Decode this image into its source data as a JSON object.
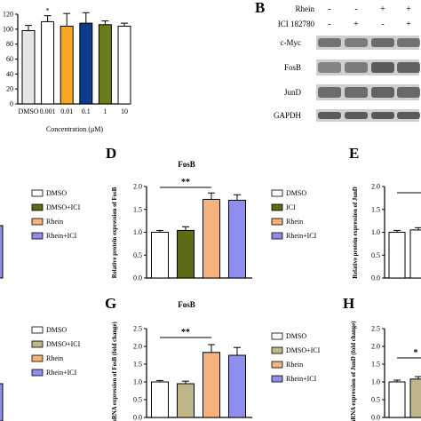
{
  "panels": {
    "top_left": {
      "chart_data": {
        "type": "bar",
        "categories": [
          "DMSO",
          "0.001",
          "0.01",
          "0.1",
          "1",
          "10"
        ],
        "values": [
          98,
          110,
          104,
          108,
          106,
          104
        ],
        "errors": [
          7,
          8,
          17,
          14,
          5,
          4
        ],
        "significance": [
          "",
          "*",
          "",
          "",
          "",
          ""
        ],
        "bar_colors": [
          "#e6e6e6",
          "#ffffff",
          "#f5a623",
          "#0d3b8c",
          "#6a7d1e",
          "#ffffff"
        ],
        "ylim": [
          0,
          120
        ],
        "yticks": [
          "0",
          "20",
          "40",
          "60",
          "80",
          "100",
          "120"
        ],
        "xlabel": "Concentration (μM)",
        "ylabel": ""
      }
    },
    "B": {
      "label": "B",
      "treatments": [
        {
          "name": "Rhein",
          "signs": [
            "-",
            "-",
            "+",
            "+"
          ]
        },
        {
          "name": "ICI 182780",
          "signs": [
            "-",
            "+",
            "-",
            "+"
          ]
        }
      ],
      "rows": [
        "c-Myc",
        "FosB",
        "JunD",
        "GAPDH"
      ]
    },
    "D": {
      "label": "D",
      "chart_data": {
        "type": "bar",
        "title": "FosB",
        "ylabel": "Relative protein expression of FosB",
        "categories": [
          "DMSO",
          "ICI",
          "Rhein",
          "Rhein+ICI"
        ],
        "values": [
          1.0,
          1.04,
          1.72,
          1.7
        ],
        "errors": [
          0.04,
          0.08,
          0.14,
          0.12
        ],
        "bar_colors": [
          "#ffffff",
          "#5e6b16",
          "#f6b27a",
          "#8f8dee"
        ],
        "ylim": [
          0.0,
          2.0
        ],
        "yticks": [
          "0.0",
          "0.5",
          "1.0",
          "1.5",
          "2.0"
        ],
        "significance": {
          "from": 0,
          "to": 2,
          "label": "**"
        }
      },
      "legend": [
        "DMSO",
        "ICI",
        "Rhein",
        "Rhein+ICI"
      ]
    },
    "left_legend_1": [
      "DMSO",
      "DMSO+ICI",
      "Rhein",
      "Rhein+ICI"
    ],
    "E": {
      "label": "E",
      "chart_data": {
        "type": "bar",
        "ylabel": "Relative protein expression of JunD",
        "categories": [
          "DMSO",
          "ICI"
        ],
        "values": [
          1.0,
          1.05
        ],
        "errors": [
          0.04,
          0.05
        ],
        "bar_colors": [
          "#ffffff",
          "#ffffff"
        ],
        "ylim": [
          0.0,
          2.0
        ],
        "yticks": [
          "0.0",
          "0.5",
          "1.0",
          "1.5",
          "2.0"
        ]
      }
    },
    "G": {
      "label": "G",
      "chart_data": {
        "type": "bar",
        "title": "FosB",
        "ylabel": "mRNA expression of FosB (fold change)",
        "categories": [
          "DMSO",
          "DMSO+ICI",
          "Rhein",
          "Rhein+ICI"
        ],
        "values": [
          1.0,
          0.95,
          1.83,
          1.75
        ],
        "errors": [
          0.04,
          0.07,
          0.22,
          0.22
        ],
        "bar_colors": [
          "#ffffff",
          "#bfb78a",
          "#f6b27a",
          "#8f8dee"
        ],
        "ylim": [
          0.0,
          2.5
        ],
        "yticks": [
          "0.0",
          "0.5",
          "1.0",
          "1.5",
          "2.0",
          "2.5"
        ],
        "significance": {
          "from": 0,
          "to": 2,
          "label": "**"
        }
      },
      "legend": [
        "DMSO",
        "DMSO+ICI",
        "Rhein",
        "Rhein+ICI"
      ]
    },
    "left_legend_2": [
      "DMSO",
      "DMSO+ICI",
      "Rhein",
      "Rhein+ICI"
    ],
    "H": {
      "label": "H",
      "chart_data": {
        "type": "bar",
        "ylabel": "mRNA expression of JunD (fold change)",
        "categories": [
          "DMSO",
          "DMSO+ICI"
        ],
        "values": [
          1.0,
          1.08
        ],
        "errors": [
          0.05,
          0.07
        ],
        "bar_colors": [
          "#ffffff",
          "#bfb78a"
        ],
        "ylim": [
          0.0,
          2.5
        ],
        "yticks": [
          "0.0",
          "0.5",
          "1.0",
          "1.5",
          "2.0",
          "2.5"
        ],
        "significance_label": "*"
      }
    }
  }
}
